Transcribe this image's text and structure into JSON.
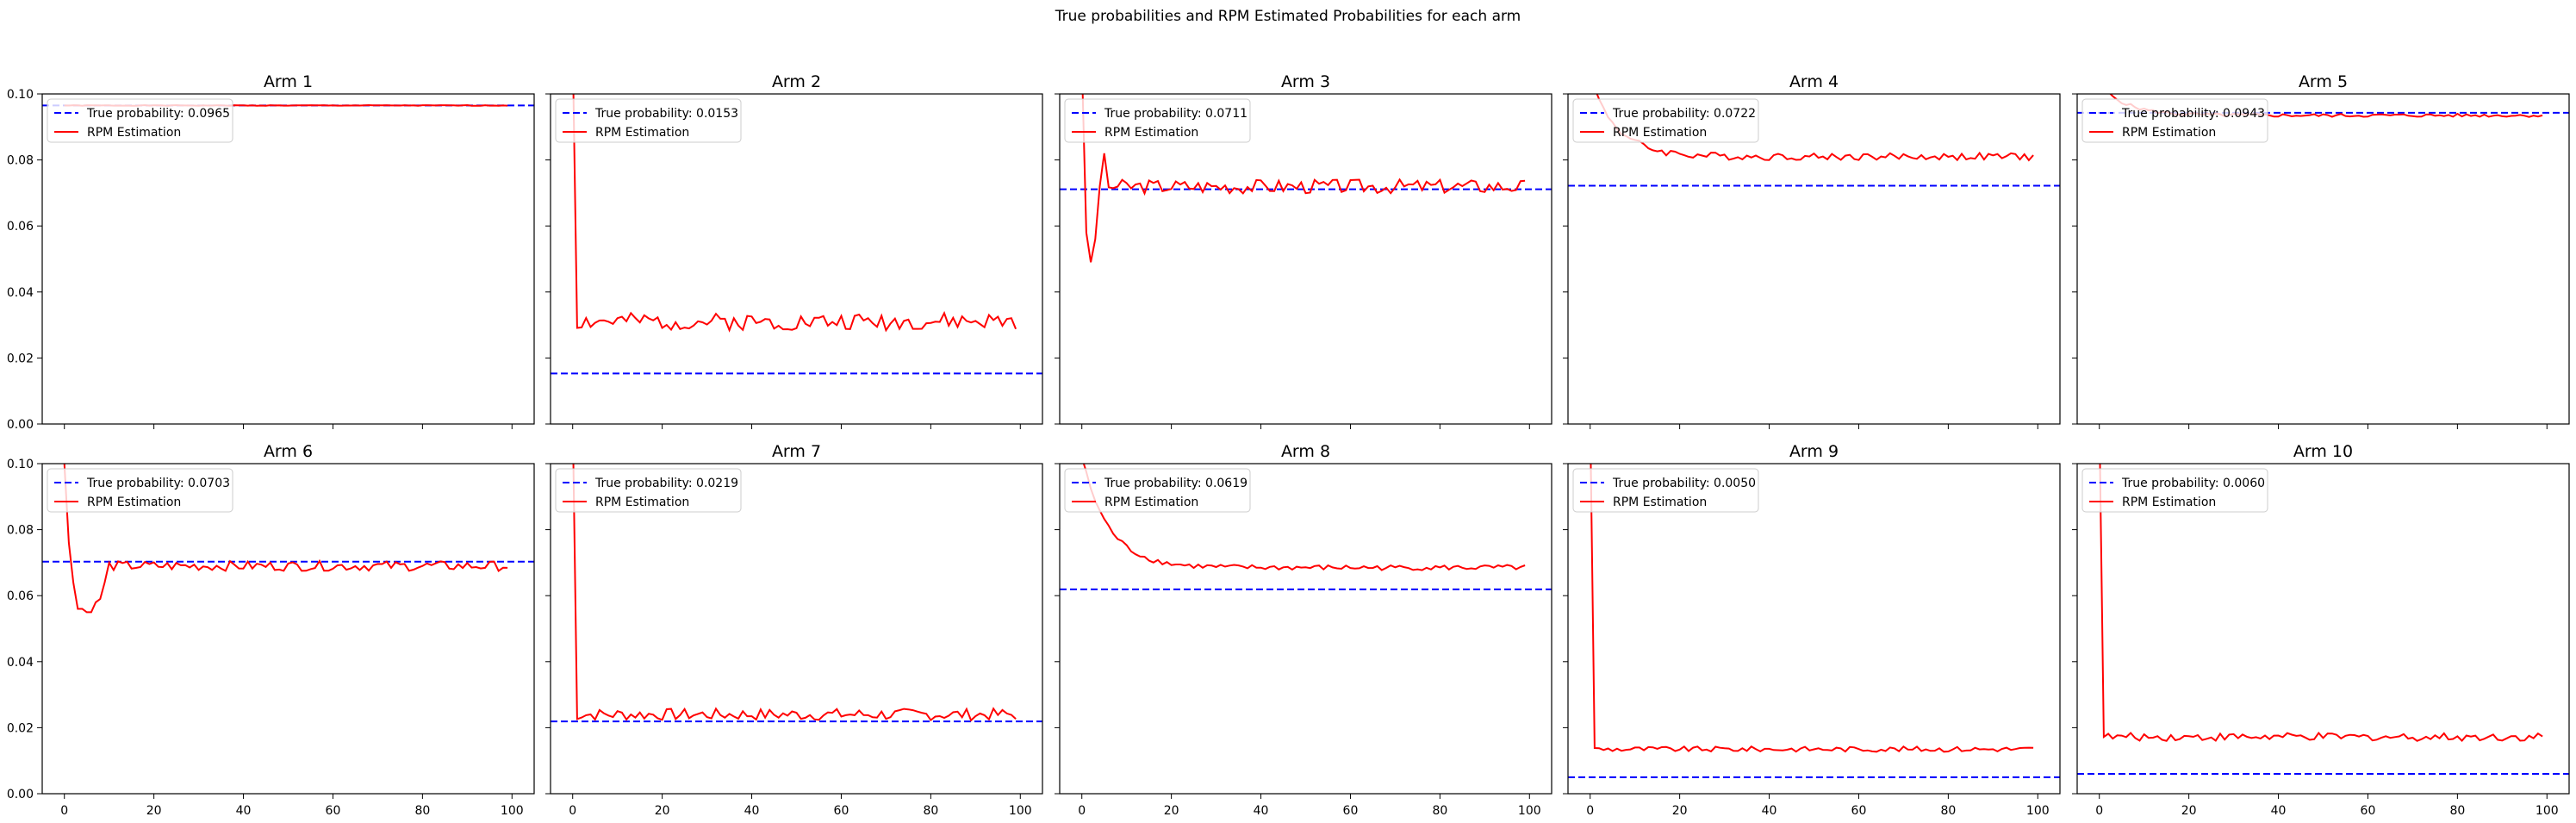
{
  "figure_title": "True probabilities and RPM Estimated Probabilities for each arm",
  "legend": {
    "estimation_label": "RPM Estimation",
    "true_label_prefix": "True probability: "
  },
  "colors": {
    "true_line": "#0000ff",
    "estimation_line": "#ff0000",
    "axes": "#000000"
  },
  "chart_data": [
    {
      "type": "line",
      "title": "Arm 1",
      "true_probability": 0.0965,
      "true_probability_label": "0.0965",
      "xlim": [
        -4.95,
        104.95
      ],
      "ylim": [
        0,
        0.1
      ],
      "yticks": [
        "0.00",
        "0.02",
        "0.04",
        "0.06",
        "0.08",
        "0.10"
      ],
      "xticks": [],
      "show_y_labels": true,
      "show_x_labels": false,
      "series": [
        {
          "name": "RPM Estimation",
          "kind": "converge",
          "start": 0.0965,
          "plateau": 0.0965,
          "noise": 0.0001,
          "seed": 1
        }
      ]
    },
    {
      "type": "line",
      "title": "Arm 2",
      "true_probability": 0.0153,
      "true_probability_label": "0.0153",
      "xlim": [
        -4.95,
        104.95
      ],
      "ylim": [
        0,
        0.1
      ],
      "yticks": [],
      "xticks": [],
      "show_y_labels": false,
      "show_x_labels": false,
      "series": [
        {
          "name": "RPM Estimation",
          "kind": "spike",
          "start": 0.115,
          "plateau": 0.031,
          "noise": 0.0026,
          "seed": 2
        }
      ]
    },
    {
      "type": "line",
      "title": "Arm 3",
      "true_probability": 0.0711,
      "true_probability_label": "0.0711",
      "xlim": [
        -4.95,
        104.95
      ],
      "ylim": [
        0,
        0.1
      ],
      "yticks": [],
      "xticks": [],
      "show_y_labels": false,
      "show_x_labels": false,
      "series": [
        {
          "name": "RPM Estimation",
          "kind": "dip",
          "start": 0.11,
          "plateau": 0.072,
          "noise": 0.0022,
          "seed": 3
        }
      ]
    },
    {
      "type": "line",
      "title": "Arm 4",
      "true_probability": 0.0722,
      "true_probability_label": "0.0722",
      "xlim": [
        -4.95,
        104.95
      ],
      "ylim": [
        0,
        0.1
      ],
      "yticks": [],
      "xticks": [],
      "show_y_labels": false,
      "show_x_labels": false,
      "series": [
        {
          "name": "RPM Estimation",
          "kind": "decay",
          "start": 0.105,
          "plateau": 0.081,
          "noise": 0.0011,
          "seed": 4
        }
      ]
    },
    {
      "type": "line",
      "title": "Arm 5",
      "true_probability": 0.0943,
      "true_probability_label": "0.0943",
      "xlim": [
        -4.95,
        104.95
      ],
      "ylim": [
        0,
        0.1
      ],
      "yticks": [],
      "xticks": [],
      "show_y_labels": false,
      "show_x_labels": false,
      "series": [
        {
          "name": "RPM Estimation",
          "kind": "decay",
          "start": 0.103,
          "plateau": 0.0935,
          "noise": 0.0005,
          "seed": 5
        }
      ]
    },
    {
      "type": "line",
      "title": "Arm 6",
      "true_probability": 0.0703,
      "true_probability_label": "0.0703",
      "xlim": [
        -4.95,
        104.95
      ],
      "ylim": [
        0,
        0.1
      ],
      "yticks": [
        "0.00",
        "0.02",
        "0.04",
        "0.06",
        "0.08",
        "0.10"
      ],
      "xticks": [
        "0",
        "20",
        "40",
        "60",
        "80",
        "100"
      ],
      "show_y_labels": true,
      "show_x_labels": true,
      "series": [
        {
          "name": "RPM Estimation",
          "kind": "dip6",
          "start": 0.1,
          "plateau": 0.069,
          "noise": 0.0015,
          "seed": 6
        }
      ]
    },
    {
      "type": "line",
      "title": "Arm 7",
      "true_probability": 0.0219,
      "true_probability_label": "0.0219",
      "xlim": [
        -4.95,
        104.95
      ],
      "ylim": [
        0,
        0.1
      ],
      "yticks": [],
      "xticks": [
        "0",
        "20",
        "40",
        "60",
        "80",
        "100"
      ],
      "show_y_labels": false,
      "show_x_labels": true,
      "series": [
        {
          "name": "RPM Estimation",
          "kind": "spike",
          "start": 0.115,
          "plateau": 0.024,
          "noise": 0.0018,
          "seed": 7
        }
      ]
    },
    {
      "type": "line",
      "title": "Arm 8",
      "true_probability": 0.0619,
      "true_probability_label": "0.0619",
      "xlim": [
        -4.95,
        104.95
      ],
      "ylim": [
        0,
        0.1
      ],
      "yticks": [],
      "xticks": [
        "0",
        "20",
        "40",
        "60",
        "80",
        "100"
      ],
      "show_y_labels": false,
      "show_x_labels": true,
      "series": [
        {
          "name": "RPM Estimation",
          "kind": "decay",
          "start": 0.102,
          "plateau": 0.0685,
          "noise": 0.0008,
          "seed": 8
        }
      ]
    },
    {
      "type": "line",
      "title": "Arm 9",
      "true_probability": 0.005,
      "true_probability_label": "0.0050",
      "xlim": [
        -4.95,
        104.95
      ],
      "ylim": [
        0,
        0.1
      ],
      "yticks": [],
      "xticks": [
        "0",
        "20",
        "40",
        "60",
        "80",
        "100"
      ],
      "show_y_labels": false,
      "show_x_labels": true,
      "series": [
        {
          "name": "RPM Estimation",
          "kind": "spike",
          "start": 0.115,
          "plateau": 0.0135,
          "noise": 0.0008,
          "seed": 9
        }
      ]
    },
    {
      "type": "line",
      "title": "Arm 10",
      "true_probability": 0.006,
      "true_probability_label": "0.0060",
      "xlim": [
        -4.95,
        104.95
      ],
      "ylim": [
        0,
        0.1
      ],
      "yticks": [],
      "xticks": [
        "0",
        "20",
        "40",
        "60",
        "80",
        "100"
      ],
      "show_y_labels": false,
      "show_x_labels": true,
      "series": [
        {
          "name": "RPM Estimation",
          "kind": "spike",
          "start": 0.115,
          "plateau": 0.0172,
          "noise": 0.0012,
          "seed": 10
        }
      ]
    }
  ]
}
